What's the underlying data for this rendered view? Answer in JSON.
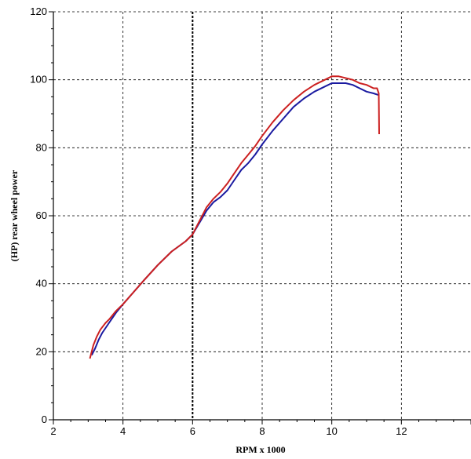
{
  "chart_data": {
    "type": "line",
    "title": "",
    "xlabel": "RPM x 1000",
    "ylabel": "(HP) rear wheel power",
    "xlim": [
      2,
      14
    ],
    "ylim": [
      0,
      120
    ],
    "x_ticks": [
      2,
      4,
      6,
      8,
      10,
      12
    ],
    "y_ticks": [
      0,
      20,
      40,
      60,
      80,
      100,
      120
    ],
    "grid": true,
    "grid_style": "dashed",
    "highlight_x": 6,
    "series": [
      {
        "color": "#1a1aa0",
        "x": [
          3.1,
          3.2,
          3.3,
          3.4,
          3.5,
          3.6,
          3.8,
          4.0,
          4.3,
          4.6,
          5.0,
          5.4,
          5.8,
          6.0,
          6.2,
          6.4,
          6.6,
          6.8,
          7.0,
          7.2,
          7.4,
          7.6,
          7.8,
          8.0,
          8.3,
          8.6,
          8.9,
          9.2,
          9.5,
          9.8,
          10.0,
          10.2,
          10.4,
          10.6,
          10.8,
          11.0,
          11.2,
          11.35
        ],
        "y": [
          19,
          21,
          23.5,
          25.5,
          27,
          28.5,
          31.5,
          34,
          37.5,
          41,
          45.5,
          49.5,
          52.5,
          54.5,
          58,
          61.5,
          64,
          65.5,
          67.5,
          70.5,
          73.5,
          75.5,
          78,
          81,
          85,
          88.5,
          92,
          94.5,
          96.5,
          98,
          99,
          99,
          99,
          98.5,
          97.5,
          96.5,
          96,
          95.5
        ]
      },
      {
        "color": "#cc2020",
        "x": [
          3.05,
          3.15,
          3.25,
          3.35,
          3.5,
          3.6,
          3.8,
          4.0,
          4.3,
          4.6,
          5.0,
          5.4,
          5.8,
          6.0,
          6.2,
          6.4,
          6.6,
          6.8,
          7.0,
          7.2,
          7.4,
          7.6,
          7.8,
          8.0,
          8.3,
          8.6,
          8.9,
          9.2,
          9.5,
          9.8,
          10.0,
          10.2,
          10.4,
          10.6,
          10.8,
          11.0,
          11.2,
          11.3,
          11.35,
          11.36
        ],
        "y": [
          18,
          22,
          24.5,
          26.5,
          28.5,
          29.5,
          32,
          34,
          37.5,
          41,
          45.5,
          49.5,
          52.5,
          54.5,
          58.5,
          62.5,
          65,
          67,
          69.5,
          72.5,
          75.5,
          78,
          80.5,
          83.5,
          87.5,
          91,
          94,
          96.5,
          98.5,
          100,
          101,
          101,
          100.5,
          100,
          99,
          98.5,
          97.5,
          97.5,
          96,
          84
        ]
      }
    ]
  }
}
